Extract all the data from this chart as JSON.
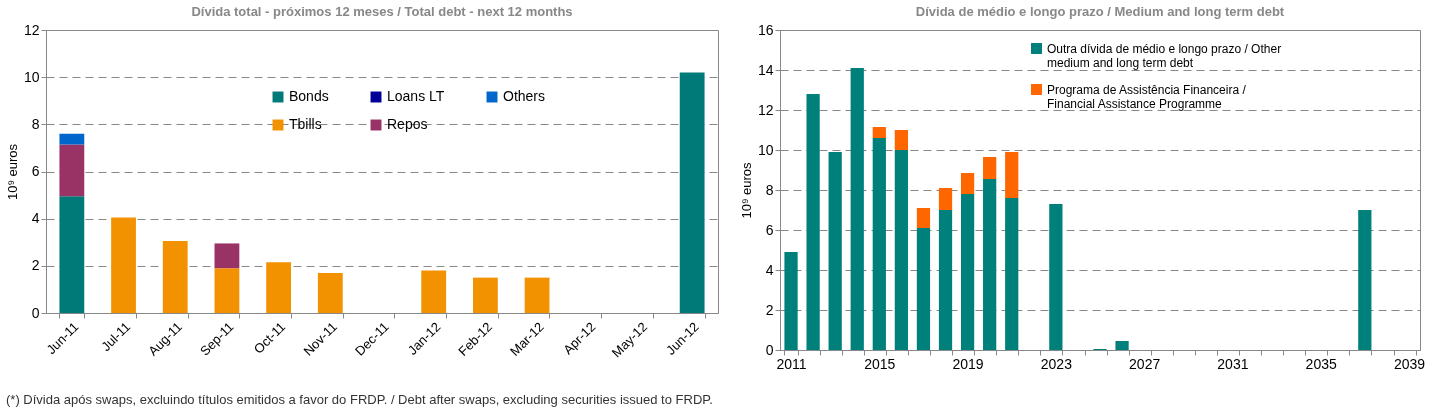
{
  "chart_data": [
    {
      "type": "bar",
      "title": "Dívida total - próximos 12 meses / Total debt - next 12 months",
      "ylabel": "10⁹ euros",
      "stacked": true,
      "legend": "top",
      "grid": "y",
      "categories": [
        "Jun-11",
        "Jul-11",
        "Aug-11",
        "Sep-11",
        "Oct-11",
        "Nov-11",
        "Dec-11",
        "Jan-12",
        "Feb-12",
        "Mar-12",
        "Apr-12",
        "May-12",
        "Jun-12"
      ],
      "ylim": [
        0,
        12
      ],
      "yticks": [
        0,
        2,
        4,
        6,
        8,
        10,
        12
      ],
      "series": [
        {
          "name": "Bonds",
          "color": "#007a78",
          "values": [
            4.95,
            null,
            null,
            null,
            null,
            null,
            null,
            null,
            null,
            null,
            null,
            null,
            10.2
          ]
        },
        {
          "name": "Tbills",
          "color": "#f39200",
          "values": [
            null,
            4.05,
            3.05,
            1.9,
            2.15,
            1.7,
            null,
            1.8,
            1.5,
            1.5,
            null,
            null,
            null
          ]
        },
        {
          "name": "Loans LT",
          "color": "#000099",
          "values": [
            null,
            null,
            null,
            null,
            null,
            null,
            null,
            null,
            null,
            null,
            null,
            null,
            null
          ]
        },
        {
          "name": "Repos",
          "color": "#993366",
          "values": [
            2.2,
            null,
            null,
            1.05,
            null,
            null,
            null,
            null,
            null,
            null,
            null,
            null,
            null
          ]
        },
        {
          "name": "Others",
          "color": "#0066cc",
          "values": [
            0.45,
            null,
            null,
            null,
            null,
            null,
            null,
            null,
            null,
            null,
            null,
            null,
            null
          ]
        }
      ],
      "annotations": [
        "(*) Dívida após swaps, excluindo títulos emitidos a favor do FRDP. / Debt after swaps, excluding securities issued to FRDP."
      ]
    },
    {
      "type": "bar",
      "title": "Dívida de médio e longo prazo / Medium and long term debt",
      "ylabel": "10⁹ euros",
      "stacked": true,
      "legend": "top",
      "grid": "y",
      "categories": [
        "2011",
        null,
        null,
        null,
        "2015",
        null,
        null,
        null,
        "2019",
        null,
        null,
        null,
        "2023",
        null,
        null,
        null,
        "2027",
        null,
        null,
        null,
        "2031",
        null,
        null,
        null,
        "2035",
        null,
        null,
        null,
        "2039"
      ],
      "ylim": [
        0,
        16
      ],
      "yticks": [
        0,
        2,
        4,
        6,
        8,
        10,
        12,
        14,
        16
      ],
      "series": [
        {
          "name": "Outra dívida de médio e longo prazo / Other medium and long term debt",
          "color": "#00807a",
          "values": [
            4.9,
            12.8,
            9.9,
            14.1,
            10.6,
            10.0,
            6.1,
            7.0,
            7.8,
            8.55,
            7.6,
            null,
            7.3,
            null,
            0.05,
            0.45,
            null,
            null,
            null,
            null,
            null,
            null,
            null,
            null,
            null,
            null,
            7.0,
            null,
            null
          ]
        },
        {
          "name": "Programa de Assistência Financeira / Financial Assistance Programme",
          "color": "#ff6600",
          "values": [
            null,
            null,
            null,
            null,
            0.55,
            1.0,
            1.0,
            1.1,
            1.05,
            1.1,
            2.3,
            null,
            null,
            null,
            null,
            null,
            null,
            null,
            null,
            null,
            null,
            null,
            null,
            null,
            null,
            null,
            null,
            null,
            null
          ]
        }
      ]
    }
  ]
}
